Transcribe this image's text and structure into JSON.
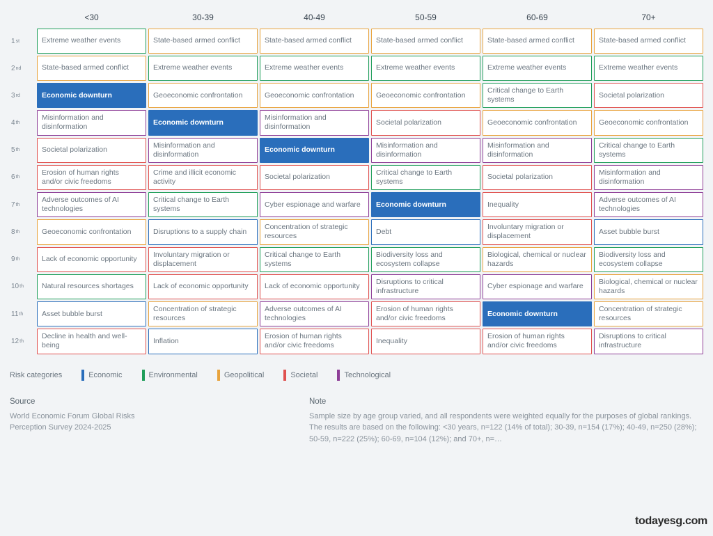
{
  "columns": [
    "<30",
    "30-39",
    "40-49",
    "50-59",
    "60-69",
    "70+"
  ],
  "ranks": [
    "1st",
    "2nd",
    "3rd",
    "4th",
    "5th",
    "6th",
    "7th",
    "8th",
    "9th",
    "10th",
    "11th",
    "12th"
  ],
  "categories": {
    "economic": {
      "color": "#2a6ebb",
      "label": "Economic"
    },
    "environmental": {
      "color": "#1f9e5a",
      "label": "Environmental"
    },
    "geopolitical": {
      "color": "#e8a33d",
      "label": "Geopolitical"
    },
    "societal": {
      "color": "#e0514f",
      "label": "Societal"
    },
    "technological": {
      "color": "#8e3e97",
      "label": "Technological"
    }
  },
  "legend_title": "Risk categories",
  "cells": [
    [
      {
        "t": "Extreme weather events",
        "c": "environmental"
      },
      {
        "t": "State-based armed conflict",
        "c": "geopolitical"
      },
      {
        "t": "State-based armed conflict",
        "c": "geopolitical"
      },
      {
        "t": "State-based armed conflict",
        "c": "geopolitical"
      },
      {
        "t": "State-based armed conflict",
        "c": "geopolitical"
      },
      {
        "t": "State-based armed conflict",
        "c": "geopolitical"
      }
    ],
    [
      {
        "t": "State-based armed conflict",
        "c": "geopolitical"
      },
      {
        "t": "Extreme weather events",
        "c": "environmental"
      },
      {
        "t": "Extreme weather events",
        "c": "environmental"
      },
      {
        "t": "Extreme weather events",
        "c": "environmental"
      },
      {
        "t": "Extreme weather events",
        "c": "environmental"
      },
      {
        "t": "Extreme weather events",
        "c": "environmental"
      }
    ],
    [
      {
        "t": "Economic downturn",
        "c": "economic",
        "f": true
      },
      {
        "t": "Geoeconomic confrontation",
        "c": "geopolitical"
      },
      {
        "t": "Geoeconomic confrontation",
        "c": "geopolitical"
      },
      {
        "t": "Geoeconomic confrontation",
        "c": "geopolitical"
      },
      {
        "t": "Critical change to Earth systems",
        "c": "environmental"
      },
      {
        "t": "Societal polarization",
        "c": "societal"
      }
    ],
    [
      {
        "t": "Misinformation and disinformation",
        "c": "technological"
      },
      {
        "t": "Economic downturn",
        "c": "economic",
        "f": true
      },
      {
        "t": "Misinformation and disinformation",
        "c": "technological"
      },
      {
        "t": "Societal polarization",
        "c": "societal"
      },
      {
        "t": "Geoeconomic confrontation",
        "c": "geopolitical"
      },
      {
        "t": "Geoeconomic confrontation",
        "c": "geopolitical"
      }
    ],
    [
      {
        "t": "Societal polarization",
        "c": "societal"
      },
      {
        "t": "Misinformation and disinformation",
        "c": "technological"
      },
      {
        "t": "Economic downturn",
        "c": "economic",
        "f": true
      },
      {
        "t": "Misinformation and disinformation",
        "c": "technological"
      },
      {
        "t": "Misinformation and disinformation",
        "c": "technological"
      },
      {
        "t": "Critical change to Earth systems",
        "c": "environmental"
      }
    ],
    [
      {
        "t": "Erosion of human rights and/or civic freedoms",
        "c": "societal"
      },
      {
        "t": "Crime and illicit economic activity",
        "c": "societal"
      },
      {
        "t": "Societal polarization",
        "c": "societal"
      },
      {
        "t": "Critical change to Earth systems",
        "c": "environmental"
      },
      {
        "t": "Societal polarization",
        "c": "societal"
      },
      {
        "t": "Misinformation and disinformation",
        "c": "technological"
      }
    ],
    [
      {
        "t": "Adverse outcomes of AI technologies",
        "c": "technological"
      },
      {
        "t": "Critical change to Earth systems",
        "c": "environmental"
      },
      {
        "t": "Cyber espionage and warfare",
        "c": "technological"
      },
      {
        "t": "Economic downturn",
        "c": "economic",
        "f": true
      },
      {
        "t": "Inequality",
        "c": "societal"
      },
      {
        "t": "Adverse outcomes of AI technologies",
        "c": "technological"
      }
    ],
    [
      {
        "t": "Geoeconomic confrontation",
        "c": "geopolitical"
      },
      {
        "t": "Disruptions to a supply chain",
        "c": "economic"
      },
      {
        "t": "Concentration of strategic resources",
        "c": "geopolitical"
      },
      {
        "t": "Debt",
        "c": "economic"
      },
      {
        "t": "Involuntary migration or displacement",
        "c": "societal"
      },
      {
        "t": "Asset bubble burst",
        "c": "economic"
      }
    ],
    [
      {
        "t": "Lack of economic opportunity",
        "c": "societal"
      },
      {
        "t": "Involuntary migration or displacement",
        "c": "societal"
      },
      {
        "t": "Critical change to Earth systems",
        "c": "environmental"
      },
      {
        "t": "Biodiversity loss and ecosystem collapse",
        "c": "environmental"
      },
      {
        "t": "Biological, chemical or nuclear hazards",
        "c": "geopolitical"
      },
      {
        "t": "Biodiversity loss and ecosystem collapse",
        "c": "environmental"
      }
    ],
    [
      {
        "t": "Natural resources shortages",
        "c": "environmental"
      },
      {
        "t": "Lack of economic opportunity",
        "c": "societal"
      },
      {
        "t": "Lack of economic opportunity",
        "c": "societal"
      },
      {
        "t": "Disruptions to critical infrastructure",
        "c": "technological"
      },
      {
        "t": "Cyber espionage and warfare",
        "c": "technological"
      },
      {
        "t": "Biological, chemical or nuclear hazards",
        "c": "geopolitical"
      }
    ],
    [
      {
        "t": "Asset bubble burst",
        "c": "economic"
      },
      {
        "t": "Concentration of strategic resources",
        "c": "geopolitical"
      },
      {
        "t": "Adverse outcomes of AI technologies",
        "c": "technological"
      },
      {
        "t": "Erosion of human rights and/or civic freedoms",
        "c": "societal"
      },
      {
        "t": "Economic downturn",
        "c": "economic",
        "f": true
      },
      {
        "t": "Concentration of strategic resources",
        "c": "geopolitical"
      }
    ],
    [
      {
        "t": "Decline in health and well-being",
        "c": "societal"
      },
      {
        "t": "Inflation",
        "c": "economic"
      },
      {
        "t": "Erosion of human rights and/or civic freedoms",
        "c": "societal"
      },
      {
        "t": "Inequality",
        "c": "societal"
      },
      {
        "t": "Erosion of human rights and/or civic freedoms",
        "c": "societal"
      },
      {
        "t": "Disruptions to critical infrastructure",
        "c": "technological"
      }
    ]
  ],
  "source": {
    "title": "Source",
    "lines": [
      "World Economic Forum Global Risks",
      "Perception Survey 2024-2025"
    ]
  },
  "note": {
    "title": "Note",
    "text": "Sample size by age group varied, and all respondents were weighted equally for the purposes of global rankings. The results are based on the following: <30 years, n=122 (14% of total); 30-39, n=154 (17%); 40-49, n=250 (28%); 50-59, n=222 (25%); 60-69, n=104 (12%); and 70+, n=…"
  },
  "watermark": "todayesg.com"
}
